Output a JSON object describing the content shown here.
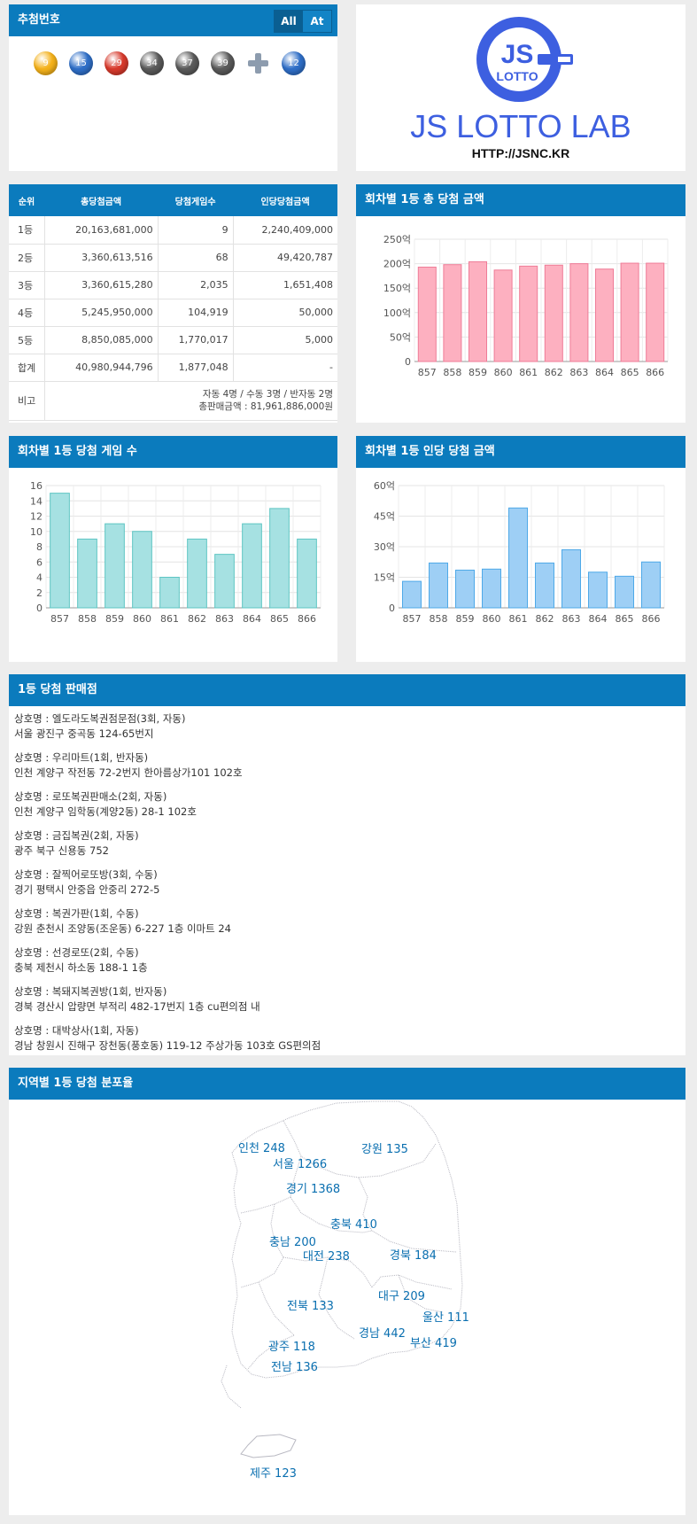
{
  "draw": {
    "title": "추첨번호",
    "toggle": [
      "All",
      "At"
    ],
    "balls": [
      {
        "n": "9",
        "color": "#f5b21a"
      },
      {
        "n": "15",
        "color": "#2f6fc8"
      },
      {
        "n": "29",
        "color": "#d83a2c"
      },
      {
        "n": "34",
        "color": "#5a5a5a"
      },
      {
        "n": "37",
        "color": "#5a5a5a"
      },
      {
        "n": "39",
        "color": "#5a5a5a"
      }
    ],
    "bonus": {
      "n": "12",
      "color": "#2f6fc8"
    }
  },
  "logo": {
    "badge_top": "JS",
    "badge_bottom": "LOTTO",
    "title": "JS LOTTO LAB",
    "url": "HTTP://JSNC.KR",
    "color": "#3d5fe0"
  },
  "prize_table": {
    "headers": [
      "순위",
      "총당첨금액",
      "당첨게임수",
      "인당당첨금액"
    ],
    "rows": [
      [
        "1등",
        "20,163,681,000",
        "9",
        "2,240,409,000"
      ],
      [
        "2등",
        "3,360,613,516",
        "68",
        "49,420,787"
      ],
      [
        "3등",
        "3,360,615,280",
        "2,035",
        "1,651,408"
      ],
      [
        "4등",
        "5,245,950,000",
        "104,919",
        "50,000"
      ],
      [
        "5등",
        "8,850,085,000",
        "1,770,017",
        "5,000"
      ],
      [
        "합계",
        "40,980,944,796",
        "1,877,048",
        "-"
      ]
    ],
    "note_label": "비고",
    "note_line1": "자동 4명 / 수동 3명 / 반자동 2명",
    "note_line2": "총판매금액 : 81,961,886,000원"
  },
  "chart_data": [
    {
      "type": "bar",
      "title": "회차별 1등 총 당첨 금액",
      "categories": [
        "857",
        "858",
        "859",
        "860",
        "861",
        "862",
        "863",
        "864",
        "865",
        "866"
      ],
      "values": [
        193,
        198,
        204,
        187,
        195,
        197,
        200,
        189,
        201,
        201
      ],
      "ylim": [
        0,
        250
      ],
      "yticks": [
        "0",
        "50억",
        "100억",
        "150억",
        "200억",
        "250억"
      ],
      "tickvals": [
        0,
        50,
        100,
        150,
        200,
        250
      ],
      "bar_fill": "#fdb0c0",
      "bar_stroke": "#ef7c97",
      "grid": true
    },
    {
      "type": "bar",
      "title": "회차별 1등 당첨 게임 수",
      "categories": [
        "857",
        "858",
        "859",
        "860",
        "861",
        "862",
        "863",
        "864",
        "865",
        "866"
      ],
      "values": [
        15,
        9,
        11,
        10,
        4,
        9,
        7,
        11,
        13,
        9
      ],
      "ylim": [
        0,
        16
      ],
      "yticks": [
        "0",
        "2",
        "4",
        "6",
        "8",
        "10",
        "12",
        "14",
        "16"
      ],
      "tickvals": [
        0,
        2,
        4,
        6,
        8,
        10,
        12,
        14,
        16
      ],
      "bar_fill": "#a6e1e2",
      "bar_stroke": "#5ec5c3",
      "grid": true
    },
    {
      "type": "bar",
      "title": "회차별 1등 인당 당첨 금액",
      "categories": [
        "857",
        "858",
        "859",
        "860",
        "861",
        "862",
        "863",
        "864",
        "865",
        "866"
      ],
      "values": [
        13,
        22,
        18.5,
        19,
        49,
        22,
        28.5,
        17.5,
        15.5,
        22.5
      ],
      "ylim": [
        0,
        60
      ],
      "yticks": [
        "0",
        "15억",
        "30억",
        "45억",
        "60억"
      ],
      "tickvals": [
        0,
        15,
        30,
        45,
        60
      ],
      "bar_fill": "#9ecff5",
      "bar_stroke": "#4ea9e8",
      "grid": true
    }
  ],
  "stores": {
    "title": "1등 당첨 판매점",
    "items": [
      {
        "name": "상호명 : 엘도라도복권점문점(3회, 자동)",
        "addr": "서울 광진구 중곡동 124-65번지"
      },
      {
        "name": "상호명 : 우리마트(1회, 반자동)",
        "addr": "인천 계양구 작전동 72-2번지 한아름상가101 102호"
      },
      {
        "name": "상호명 : 로또복권판매소(2회, 자동)",
        "addr": "인천 계양구 임학동(계양2동) 28-1 102호"
      },
      {
        "name": "상호명 : 금집복권(2회, 자동)",
        "addr": "광주 북구 신용동 752"
      },
      {
        "name": "상호명 : 잘찍어로또방(3회, 수동)",
        "addr": "경기 평택시 안중읍 안중리 272-5"
      },
      {
        "name": "상호명 : 복권가판(1회, 수동)",
        "addr": "강원 춘천시 조양동(조운동) 6-227 1층 이마트 24"
      },
      {
        "name": "상호명 : 선경로또(2회, 수동)",
        "addr": "충북 제천시 하소동 188-1 1층"
      },
      {
        "name": "상호명 : 복돼지복권방(1회, 반자동)",
        "addr": "경북 경산시 압량면 부적리 482-17번지 1층 cu편의점 내"
      },
      {
        "name": "상호명 : 대박상사(1회, 자동)",
        "addr": "경남 창원시 진해구 장천동(풍호동) 119-12 주상가동 103호 GS편의점"
      }
    ]
  },
  "region_map": {
    "title": "지역별 1등 당첨 분포율",
    "regions": [
      {
        "label": "인천 248"
      },
      {
        "label": "강원 135"
      },
      {
        "label": "서울 1266"
      },
      {
        "label": "경기 1368"
      },
      {
        "label": "충북 410"
      },
      {
        "label": "충남 200"
      },
      {
        "label": "대전 238"
      },
      {
        "label": "경북 184"
      },
      {
        "label": "전북 133"
      },
      {
        "label": "대구 209"
      },
      {
        "label": "울산 111"
      },
      {
        "label": "경남 442"
      },
      {
        "label": "부산 419"
      },
      {
        "label": "광주 118"
      },
      {
        "label": "전남 136"
      },
      {
        "label": "제주 123"
      }
    ]
  }
}
